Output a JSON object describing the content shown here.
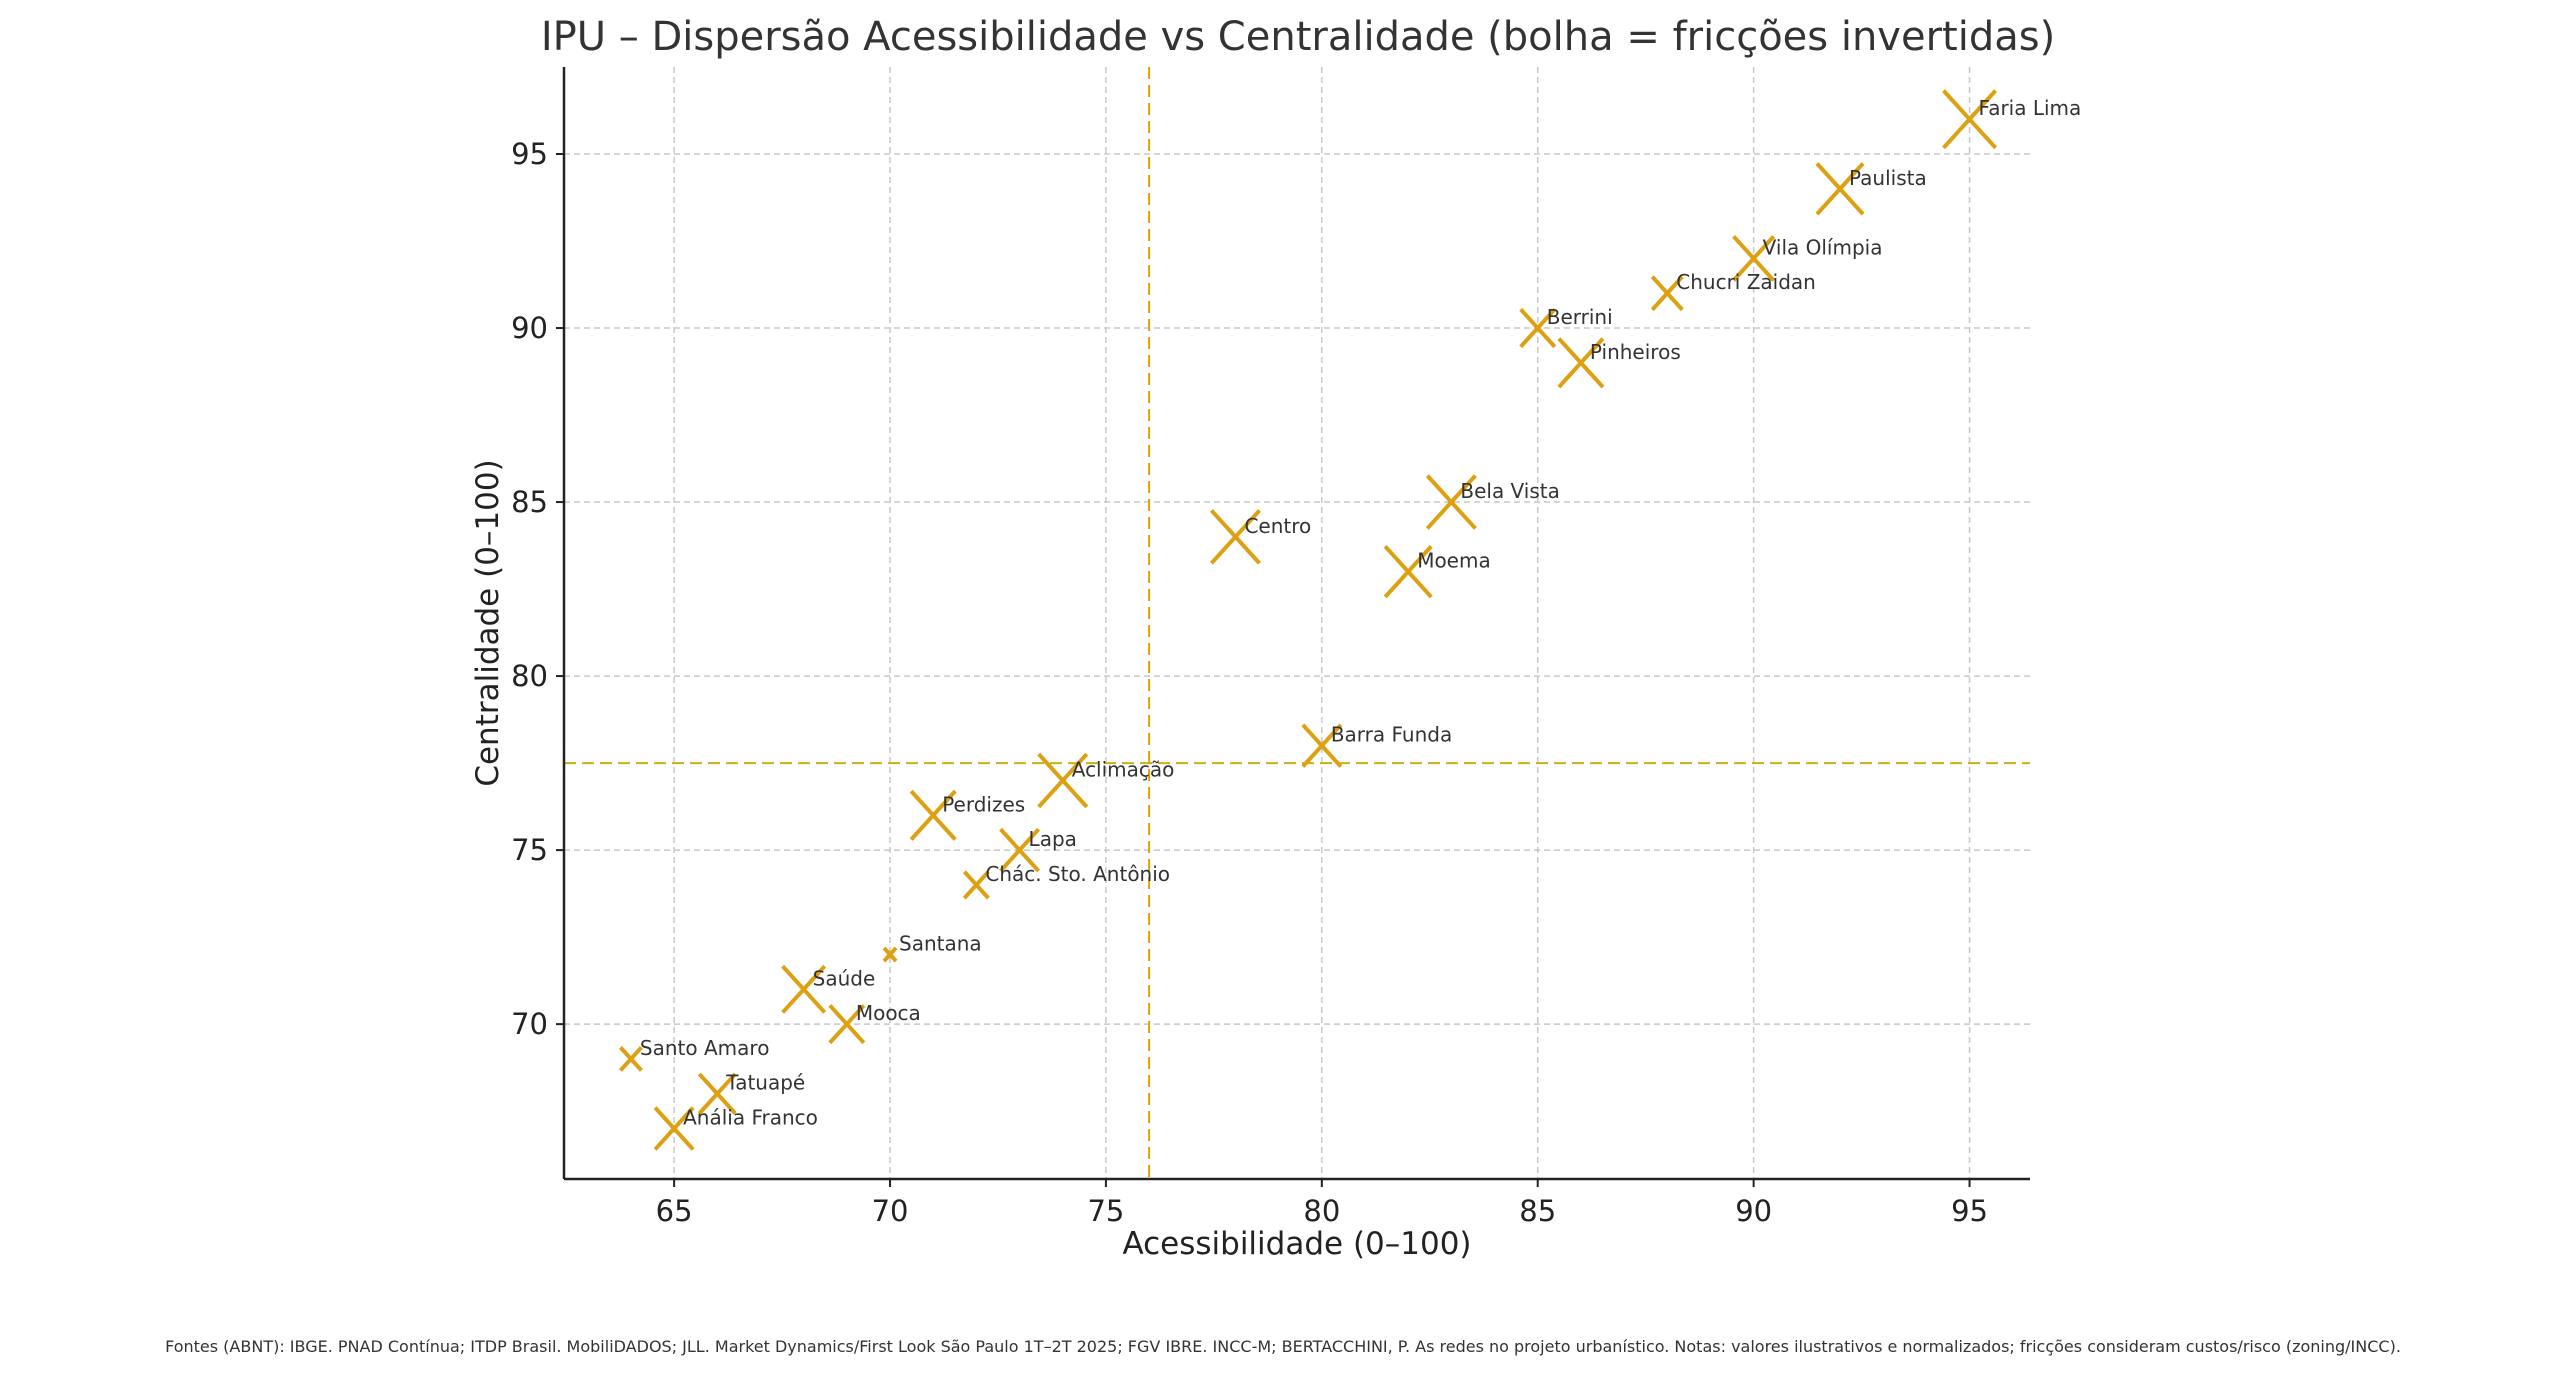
{
  "chart_data": {
    "type": "scatter",
    "title": "IPU – Dispersão Acessibilidade vs Centralidade (bolha = fricções invertidas)",
    "xlabel": "Acessibilidade (0–100)",
    "ylabel": "Centralidade (0–100)",
    "xlim": [
      62.45,
      96.4
    ],
    "ylim": [
      65.55,
      97.5
    ],
    "xticks": [
      65,
      70,
      75,
      80,
      85,
      90,
      95
    ],
    "yticks": [
      70,
      75,
      80,
      85,
      90,
      95
    ],
    "grid": true,
    "marker": "x",
    "marker_color": "#DDA011",
    "reference_lines": {
      "x": 76,
      "y": 77.5,
      "x_color": "#E0A000",
      "y_color": "#C9B20E"
    },
    "points": [
      {
        "label": "Faria Lima",
        "x": 95,
        "y": 96,
        "bubble": 676
      },
      {
        "label": "Paulista",
        "x": 92,
        "y": 94,
        "bubble": 529
      },
      {
        "label": "Vila Olímpia",
        "x": 90,
        "y": 92,
        "bubble": 400
      },
      {
        "label": "Chucri Zaidan",
        "x": 88,
        "y": 91,
        "bubble": 225
      },
      {
        "label": "Berrini",
        "x": 85,
        "y": 90,
        "bubble": 289
      },
      {
        "label": "Pinheiros",
        "x": 86,
        "y": 89,
        "bubble": 484
      },
      {
        "label": "Bela Vista",
        "x": 83,
        "y": 85,
        "bubble": 576
      },
      {
        "label": "Centro",
        "x": 78,
        "y": 84,
        "bubble": 576
      },
      {
        "label": "Moema",
        "x": 82,
        "y": 83,
        "bubble": 529
      },
      {
        "label": "Barra Funda",
        "x": 80,
        "y": 78,
        "bubble": 361
      },
      {
        "label": "Aclimação",
        "x": 74,
        "y": 77,
        "bubble": 576
      },
      {
        "label": "Perdizes",
        "x": 71,
        "y": 76,
        "bubble": 484
      },
      {
        "label": "Lapa",
        "x": 73,
        "y": 75,
        "bubble": 361
      },
      {
        "label": "Chác. Sto. Antônio",
        "x": 72,
        "y": 74,
        "bubble": 144
      },
      {
        "label": "Santana",
        "x": 70,
        "y": 72,
        "bubble": 36
      },
      {
        "label": "Saúde",
        "x": 68,
        "y": 71,
        "bubble": 441
      },
      {
        "label": "Mooca",
        "x": 69,
        "y": 70,
        "bubble": 289
      },
      {
        "label": "Santo Amaro",
        "x": 64,
        "y": 69,
        "bubble": 110
      },
      {
        "label": "Tatuapé",
        "x": 66,
        "y": 68,
        "bubble": 324
      },
      {
        "label": "Anália Franco",
        "x": 65,
        "y": 67,
        "bubble": 361
      }
    ]
  },
  "footer": "Fontes (ABNT): IBGE. PNAD Contínua; ITDP Brasil. MobiliDADOS; JLL. Market Dynamics/First Look São Paulo 1T–2T 2025; FGV IBRE. INCC-M; BERTACCHINI, P. As redes no projeto urbanístico. Notas: valores ilustrativos e normalizados; fricções consideram custos/risco (zoning/INCC)."
}
